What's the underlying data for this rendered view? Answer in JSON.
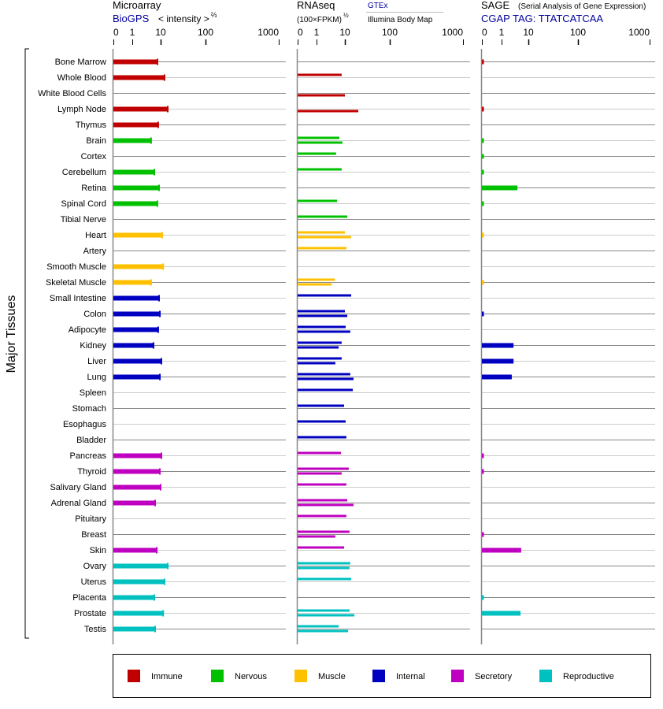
{
  "chart_data": {
    "type": "bar",
    "orientation": "horizontal",
    "group_label": "Major Tissues",
    "panels": [
      {
        "key": "microarray",
        "title": "Microarray",
        "source": "BioGPS",
        "unit": "< intensity >",
        "unit_exp": "⅔",
        "ticks": [
          0,
          1,
          10,
          100,
          1000
        ],
        "xlim": [
          0,
          1000
        ]
      },
      {
        "key": "rnaseq",
        "title": "RNAseq",
        "unit": "(100×FPKM)",
        "unit_exp": "½",
        "sources": [
          "GTEx",
          "Illumina Body Map"
        ],
        "ticks": [
          0,
          1,
          10,
          100,
          1000
        ],
        "xlim": [
          0,
          1000
        ]
      },
      {
        "key": "sage",
        "title": "SAGE",
        "subtitle": "(Serial Analysis of Gene Expression)",
        "source": "CGAP TAG: TTATCATCAA",
        "ticks": [
          0,
          1,
          10,
          100,
          1000
        ],
        "xlim": [
          0,
          1000
        ]
      }
    ],
    "tissues": [
      {
        "name": "Bone Marrow",
        "group": "Immune",
        "microarray": 7.7,
        "gtex": null,
        "illumina": null,
        "sage": 0.1
      },
      {
        "name": "Whole Blood",
        "group": "Immune",
        "microarray": 12.2,
        "gtex": 7.7,
        "illumina": null,
        "sage": null
      },
      {
        "name": "White Blood Cells",
        "group": "Immune",
        "microarray": null,
        "gtex": null,
        "illumina": 10,
        "sage": null
      },
      {
        "name": "Lymph Node",
        "group": "Immune",
        "microarray": 14.4,
        "gtex": null,
        "illumina": 19.9,
        "sage": 0.1
      },
      {
        "name": "Thymus",
        "group": "Immune",
        "microarray": 8.2,
        "gtex": null,
        "illumina": null,
        "sage": null
      },
      {
        "name": "Brain",
        "group": "Nervous",
        "microarray": 4.6,
        "gtex": 6.4,
        "illumina": 8.2,
        "sage": 0.1
      },
      {
        "name": "Cortex",
        "group": "Nervous",
        "microarray": null,
        "gtex": 4.9,
        "illumina": null,
        "sage": 0.1
      },
      {
        "name": "Cerebellum",
        "group": "Nervous",
        "microarray": 6.0,
        "gtex": 7.7,
        "illumina": null,
        "sage": 0.1
      },
      {
        "name": "Retina",
        "group": "Nervous",
        "microarray": 8.8,
        "gtex": null,
        "illumina": null,
        "sage": 3.9
      },
      {
        "name": "Spinal Cord",
        "group": "Nervous",
        "microarray": 7.7,
        "gtex": 5.3,
        "illumina": null,
        "sage": 0.1
      },
      {
        "name": "Tibial Nerve",
        "group": "Nervous",
        "microarray": null,
        "gtex": 11.3,
        "illumina": null,
        "sage": null
      },
      {
        "name": "Heart",
        "group": "Muscle",
        "microarray": 10.8,
        "gtex": 10,
        "illumina": 13.8,
        "sage": 0.1
      },
      {
        "name": "Artery",
        "group": "Muscle",
        "microarray": null,
        "gtex": 10.8,
        "illumina": null,
        "sage": null
      },
      {
        "name": "Smooth Muscle",
        "group": "Muscle",
        "microarray": 11.4,
        "gtex": null,
        "illumina": null,
        "sage": null
      },
      {
        "name": "Skeletal Muscle",
        "group": "Muscle",
        "microarray": 4.6,
        "gtex": 4.4,
        "illumina": 3.4,
        "sage": 0.1
      },
      {
        "name": "Small Intestine",
        "group": "Internal",
        "microarray": 8.8,
        "gtex": 13.8,
        "illumina": null,
        "sage": null
      },
      {
        "name": "Colon",
        "group": "Internal",
        "microarray": 9.4,
        "gtex": 10,
        "illumina": 11.3,
        "sage": 0.1
      },
      {
        "name": "Adipocyte",
        "group": "Internal",
        "microarray": 8.2,
        "gtex": 10.4,
        "illumina": 13.2,
        "sage": null
      },
      {
        "name": "Kidney",
        "group": "Internal",
        "microarray": 5.6,
        "gtex": 7.7,
        "illumina": 6.0,
        "sage": 2.8
      },
      {
        "name": "Liver",
        "group": "Internal",
        "microarray": 10.4,
        "gtex": 7.7,
        "illumina": 4.6,
        "sage": 2.8
      },
      {
        "name": "Lung",
        "group": "Internal",
        "microarray": 9.4,
        "gtex": 13.2,
        "illumina": 15.6,
        "sage": 2.4
      },
      {
        "name": "Spleen",
        "group": "Internal",
        "microarray": null,
        "gtex": 15.0,
        "illumina": null,
        "sage": null
      },
      {
        "name": "Stomach",
        "group": "Internal",
        "microarray": null,
        "gtex": 9.4,
        "illumina": null,
        "sage": null
      },
      {
        "name": "Esophagus",
        "group": "Internal",
        "microarray": null,
        "gtex": 10.4,
        "illumina": null,
        "sage": null
      },
      {
        "name": "Bladder",
        "group": "Internal",
        "microarray": null,
        "gtex": 10.8,
        "illumina": null,
        "sage": null
      },
      {
        "name": "Pancreas",
        "group": "Secretory",
        "microarray": 10.4,
        "gtex": 7.3,
        "illumina": null,
        "sage": 0.1
      },
      {
        "name": "Thyroid",
        "group": "Secretory",
        "microarray": 9.4,
        "gtex": 12.2,
        "illumina": 7.7,
        "sage": 0.1
      },
      {
        "name": "Salivary Gland",
        "group": "Secretory",
        "microarray": 10,
        "gtex": 10.8,
        "illumina": null,
        "sage": null
      },
      {
        "name": "Adrenal Gland",
        "group": "Secretory",
        "microarray": 6.4,
        "gtex": 11.3,
        "illumina": 15.6,
        "sage": null
      },
      {
        "name": "Pituitary",
        "group": "Secretory",
        "microarray": null,
        "gtex": 10.8,
        "illumina": null,
        "sage": null
      },
      {
        "name": "Breast",
        "group": "Secretory",
        "microarray": null,
        "gtex": 12.7,
        "illumina": 4.6,
        "sage": 0.1
      },
      {
        "name": "Skin",
        "group": "Secretory",
        "microarray": 7.3,
        "gtex": 9.4,
        "illumina": null,
        "sage": 5.4
      },
      {
        "name": "Ovary",
        "group": "Reproductive",
        "microarray": 14.4,
        "gtex": 13.2,
        "illumina": 12.7,
        "sage": null
      },
      {
        "name": "Uterus",
        "group": "Reproductive",
        "microarray": 12.2,
        "gtex": 13.8,
        "illumina": null,
        "sage": null
      },
      {
        "name": "Placenta",
        "group": "Reproductive",
        "microarray": 6.0,
        "gtex": null,
        "illumina": null,
        "sage": 0.1
      },
      {
        "name": "Prostate",
        "group": "Reproductive",
        "microarray": 11.4,
        "gtex": 12.7,
        "illumina": 16.3,
        "sage": 5.1
      },
      {
        "name": "Testis",
        "group": "Reproductive",
        "microarray": 6.4,
        "gtex": 6.0,
        "illumina": 11.8,
        "sage": null
      }
    ],
    "legend": [
      {
        "name": "Immune",
        "color": "#c00000"
      },
      {
        "name": "Nervous",
        "color": "#00c000"
      },
      {
        "name": "Muscle",
        "color": "#ffc000"
      },
      {
        "name": "Internal",
        "color": "#0000c0"
      },
      {
        "name": "Secretory",
        "color": "#c000c0"
      },
      {
        "name": "Reproductive",
        "color": "#00c0c0"
      }
    ],
    "legend_placement": "bottom",
    "grid": true,
    "source_link_color": "#0000a0"
  }
}
